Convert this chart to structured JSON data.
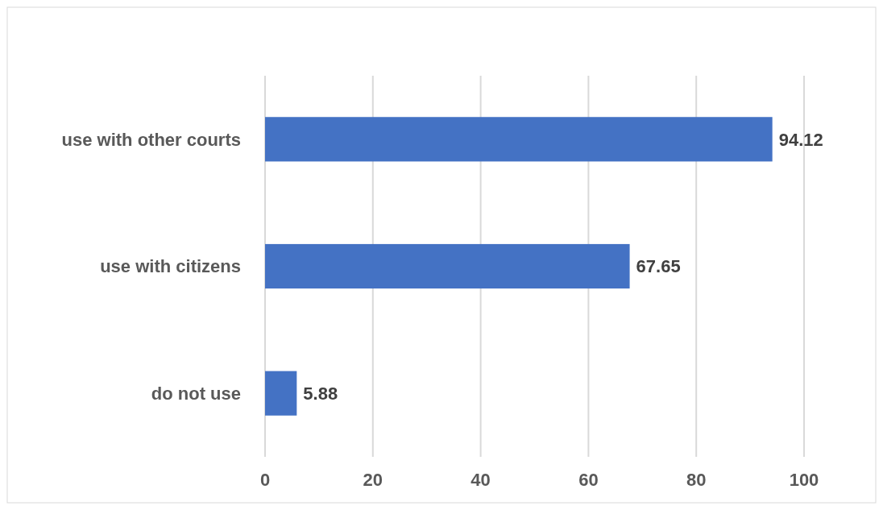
{
  "chart_data": {
    "type": "bar",
    "orientation": "horizontal",
    "categories": [
      "use with other courts",
      "use with citizens",
      "do not use"
    ],
    "values": [
      94.12,
      67.65,
      5.88
    ],
    "color": "#4472c4",
    "xlim": [
      0,
      100
    ],
    "xticks": [
      0,
      20,
      40,
      60,
      80,
      100
    ],
    "grid": "x",
    "data_labels": true
  }
}
